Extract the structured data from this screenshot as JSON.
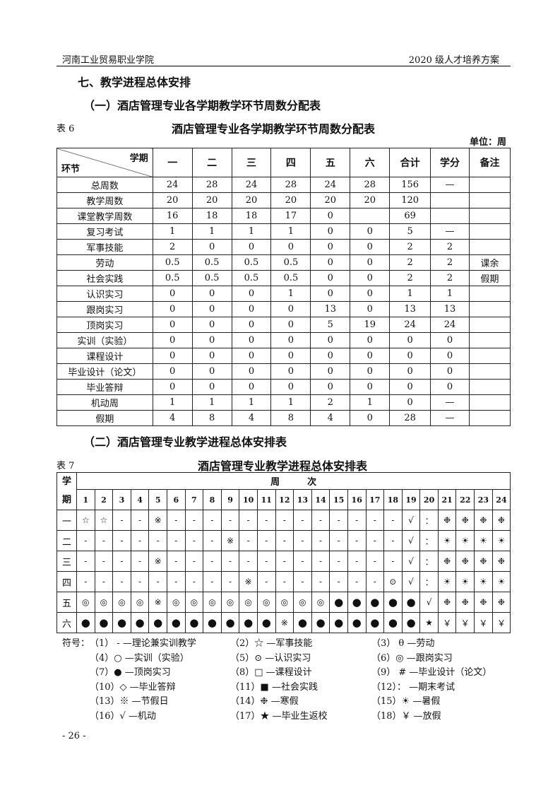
{
  "header": {
    "left": "河南工业贸易职业学院",
    "right": "2020 级人才培养方案"
  },
  "section_title": "七、教学进程总体安排",
  "sub1": "（一）酒店管理专业各学期教学环节周数分配表",
  "table6": {
    "label": "表 6",
    "title": "酒店管理专业各学期教学环节周数分配表",
    "unit": "单位：周",
    "corner_top": "学期",
    "corner_bottom": "环节",
    "columns": [
      "一",
      "二",
      "三",
      "四",
      "五",
      "六",
      "合计",
      "学分",
      "备注"
    ],
    "rows": [
      [
        "总周数",
        "24",
        "28",
        "24",
        "28",
        "24",
        "28",
        "156",
        "—",
        ""
      ],
      [
        "教学周数",
        "20",
        "20",
        "20",
        "20",
        "20",
        "20",
        "120",
        "",
        ""
      ],
      [
        "课堂教学周数",
        "16",
        "18",
        "18",
        "17",
        "0",
        "",
        "69",
        "",
        ""
      ],
      [
        "复习考试",
        "1",
        "1",
        "1",
        "1",
        "0",
        "0",
        "5",
        "—",
        ""
      ],
      [
        "军事技能",
        "2",
        "0",
        "0",
        "0",
        "0",
        "0",
        "2",
        "2",
        ""
      ],
      [
        "劳动",
        "0.5",
        "0.5",
        "0.5",
        "0.5",
        "0",
        "0",
        "2",
        "2",
        "课余"
      ],
      [
        "社会实践",
        "0.5",
        "0.5",
        "0.5",
        "0.5",
        "0",
        "0",
        "2",
        "2",
        "假期"
      ],
      [
        "认识实习",
        "0",
        "0",
        "0",
        "1",
        "0",
        "0",
        "1",
        "1",
        ""
      ],
      [
        "跟岗实习",
        "0",
        "0",
        "0",
        "0",
        "13",
        "0",
        "13",
        "13",
        ""
      ],
      [
        "顶岗实习",
        "0",
        "0",
        "0",
        "0",
        "5",
        "19",
        "24",
        "24",
        ""
      ],
      [
        "实训（实验）",
        "0",
        "0",
        "0",
        "0",
        "0",
        "0",
        "0",
        "0",
        ""
      ],
      [
        "课程设计",
        "0",
        "0",
        "0",
        "0",
        "0",
        "0",
        "0",
        "0",
        ""
      ],
      [
        "毕业设计（论文）",
        "0",
        "0",
        "0",
        "0",
        "0",
        "0",
        "0",
        "0",
        ""
      ],
      [
        "毕业答辩",
        "0",
        "0",
        "0",
        "0",
        "0",
        "0",
        "0",
        "0",
        ""
      ],
      [
        "机动周",
        "1",
        "1",
        "1",
        "1",
        "2",
        "1",
        "0",
        "—",
        ""
      ],
      [
        "假期",
        "4",
        "8",
        "4",
        "8",
        "4",
        "0",
        "28",
        "—",
        ""
      ]
    ]
  },
  "sub2": "（二）酒店管理专业教学进程总体安排表",
  "table7": {
    "label": "表 7",
    "title": "酒店管理专业教学进程总体安排表",
    "corner": "学期",
    "week_header": "周　　　次",
    "weeks": [
      "1",
      "2",
      "3",
      "4",
      "5",
      "6",
      "7",
      "8",
      "9",
      "10",
      "11",
      "12",
      "13",
      "14",
      "15",
      "16",
      "17",
      "18",
      "19",
      "20",
      "21",
      "22",
      "23",
      "24"
    ],
    "rows": [
      {
        "term": "一",
        "cells": [
          "☆",
          "☆",
          "-",
          "-",
          "※",
          "-",
          "-",
          "-",
          "-",
          "-",
          "-",
          "-",
          "-",
          "-",
          "-",
          "-",
          "-",
          "-",
          "√",
          "：",
          "❉",
          "❉",
          "❉",
          "❉"
        ]
      },
      {
        "term": "二",
        "cells": [
          "-",
          "-",
          "-",
          "-",
          "-",
          "-",
          "-",
          "-",
          "※",
          "-",
          "-",
          "-",
          "-",
          "-",
          "-",
          "-",
          "-",
          "-",
          "√",
          "：",
          "☀",
          "☀",
          "☀",
          "☀"
        ]
      },
      {
        "term": "三",
        "cells": [
          "-",
          "-",
          "-",
          "-",
          "※",
          "-",
          "-",
          "-",
          "-",
          "-",
          "-",
          "-",
          "-",
          "-",
          "-",
          "-",
          "-",
          "-",
          "√",
          "：",
          "❉",
          "❉",
          "❉",
          "❉"
        ]
      },
      {
        "term": "四",
        "cells": [
          "-",
          "-",
          "-",
          "-",
          "-",
          "-",
          "-",
          "-",
          "-",
          "※",
          "-",
          "-",
          "-",
          "-",
          "-",
          "-",
          "-",
          "⊙",
          "√",
          "：",
          "☀",
          "☀",
          "☀",
          "☀"
        ]
      },
      {
        "term": "五",
        "cells": [
          "◎",
          "◎",
          "◎",
          "◎",
          "※",
          "◎",
          "◎",
          "◎",
          "◎",
          "◎",
          "◎",
          "◎",
          "◎",
          "◎",
          "●",
          "●",
          "●",
          "●",
          "●",
          "√",
          "❉",
          "❉",
          "❉",
          "❉"
        ]
      },
      {
        "term": "六",
        "cells": [
          "●",
          "●",
          "●",
          "●",
          "●",
          "●",
          "●",
          "●",
          "●",
          "●",
          "●",
          "※",
          "●",
          "●",
          "●",
          "●",
          "●",
          "●",
          "●",
          "★",
          "￥",
          "￥",
          "￥",
          "￥"
        ]
      }
    ]
  },
  "legend": {
    "label": "符号：",
    "items": [
      "（1） - —理论兼实训教学",
      "（2）☆ —军事技能",
      "（3） θ —劳动",
      "（4）○ —实训（实验）",
      "（5）⊙ —认识实习",
      "（6）◎ —跟岗实习",
      "（7）● —顶岗实习",
      "（8）□ —课程设计",
      "（9） # —毕业设计（论文）",
      "（10）◇ —毕业答辩",
      "（11）■ —社会实践",
      "（12）： —期末考试",
      "（13）※ —节假日",
      "（14）❉ —寒假",
      "（15）☀ —暑假",
      "（16）√ —机动",
      "（17）★ —毕业生返校",
      "（18）￥ —放假"
    ]
  },
  "page_number": "- 26 -"
}
